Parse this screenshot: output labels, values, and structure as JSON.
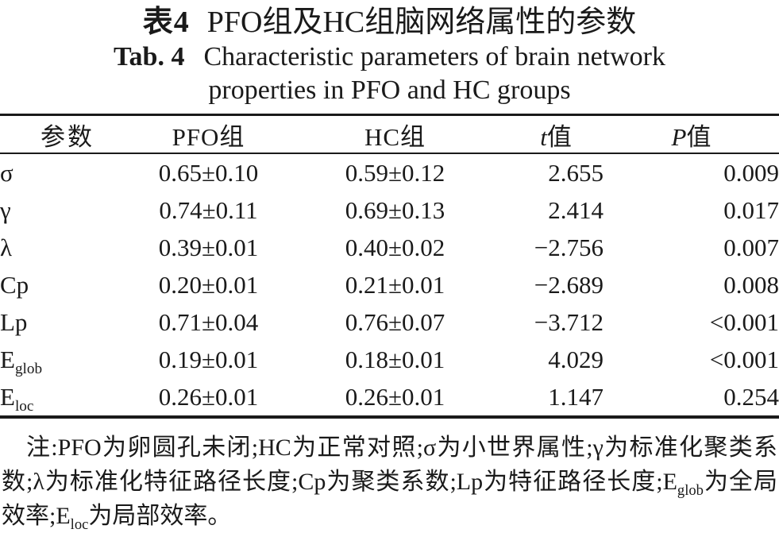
{
  "colors": {
    "ink": "#1a1a1a",
    "background": "#ffffff"
  },
  "title": {
    "zh_label": "表4",
    "zh_text": "PFO组及HC组脑网络属性的参数",
    "en_label": "Tab. 4",
    "en_line1": "Characteristic parameters of brain network",
    "en_line2": "properties in PFO and HC groups"
  },
  "table": {
    "headers": {
      "param": "参数",
      "pfo": "PFO组",
      "hc": "HC组",
      "t_italic": "t",
      "t_rest": "值",
      "p_italic": "P",
      "p_rest": "值"
    },
    "rows": [
      {
        "param": "σ",
        "sub": "",
        "pfo": "0.65±0.10",
        "hc": "0.59±0.12",
        "t": "2.655",
        "p": "0.009"
      },
      {
        "param": "γ",
        "sub": "",
        "pfo": "0.74±0.11",
        "hc": "0.69±0.13",
        "t": "2.414",
        "p": "0.017"
      },
      {
        "param": "λ",
        "sub": "",
        "pfo": "0.39±0.01",
        "hc": "0.40±0.02",
        "t": "−2.756",
        "p": "0.007"
      },
      {
        "param": "Cp",
        "sub": "",
        "pfo": "0.20±0.01",
        "hc": "0.21±0.01",
        "t": "−2.689",
        "p": "0.008"
      },
      {
        "param": "Lp",
        "sub": "",
        "pfo": "0.71±0.04",
        "hc": "0.76±0.07",
        "t": "−3.712",
        "p": "<0.001"
      },
      {
        "param": "E",
        "sub": "glob",
        "pfo": "0.19±0.01",
        "hc": "0.18±0.01",
        "t": "4.029",
        "p": "<0.001"
      },
      {
        "param": "E",
        "sub": "loc",
        "pfo": "0.26±0.01",
        "hc": "0.26±0.01",
        "t": "1.147",
        "p": "0.254"
      }
    ]
  },
  "footnote": {
    "segments": [
      {
        "text": "注:PFO为卵圆孔未闭;HC为正常对照;σ为小世界属性;γ为标准化聚类系数;λ为标准化特征路径长度;Cp为聚类系数;Lp为特征路径长度;E"
      },
      {
        "sub": "glob"
      },
      {
        "text": "为全局效率;E"
      },
      {
        "sub": "loc"
      },
      {
        "text": "为局部效率。"
      }
    ]
  }
}
